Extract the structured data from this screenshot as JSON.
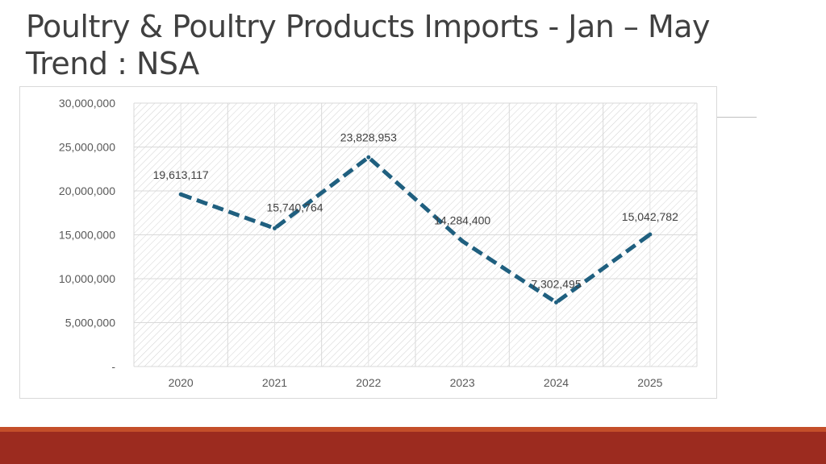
{
  "slide": {
    "title_line1": "Poultry & Poultry Products Imports  - Jan – May",
    "title_line2": "Trend : NSA"
  },
  "colors": {
    "line": "#1f5f7f",
    "bottom_bar": "#9c2b1f",
    "bottom_accent": "#c44f2a"
  },
  "chart_data": {
    "type": "line",
    "title": "",
    "xlabel": "",
    "ylabel": "",
    "categories": [
      "2020",
      "2021",
      "2022",
      "2023",
      "2024",
      "2025"
    ],
    "series": [
      {
        "values": [
          19613117,
          15740764,
          23828953,
          14284400,
          7302495,
          15042782
        ]
      }
    ],
    "data_labels": [
      "19,613,117",
      "15,740,764",
      "23,828,953",
      "14,284,400",
      "7,302,495",
      "15,042,782"
    ],
    "y_ticks": [
      {
        "value": 0,
        "label": "-"
      },
      {
        "value": 5000000,
        "label": "5,000,000"
      },
      {
        "value": 10000000,
        "label": "10,000,000"
      },
      {
        "value": 15000000,
        "label": "15,000,000"
      },
      {
        "value": 20000000,
        "label": "20,000,000"
      },
      {
        "value": 25000000,
        "label": "25,000,000"
      },
      {
        "value": 30000000,
        "label": "30,000,000"
      }
    ],
    "ylim": [
      0,
      30000000
    ],
    "grid": true,
    "line_style": "dashed",
    "legend": "none"
  }
}
